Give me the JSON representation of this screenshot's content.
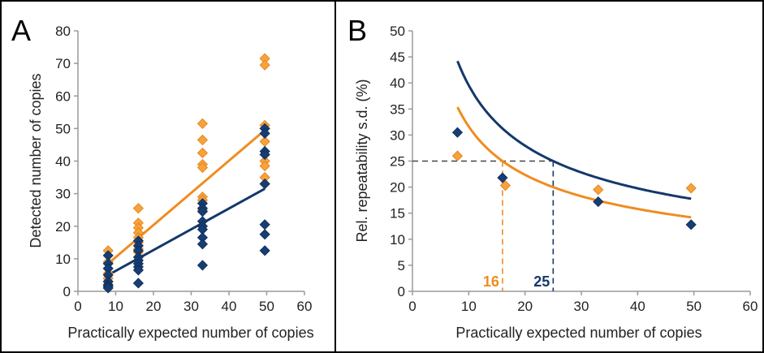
{
  "colors": {
    "orange": "#f08c1e",
    "orange_marker": "#f7a23b",
    "navy": "#14386b",
    "navy_marker": "#163e75",
    "axis": "#9a9a9a",
    "frame": "#000000"
  },
  "chart_data": [
    {
      "type": "scatter",
      "panel_label": "A",
      "title": "",
      "xlabel": "Practically expected number of copies",
      "ylabel": "Detected number of copies",
      "xlim": [
        0,
        60
      ],
      "ylim": [
        0,
        80
      ],
      "x_ticks": [
        "0",
        "10",
        "20",
        "30",
        "40",
        "50",
        "60"
      ],
      "y_ticks": [
        "0",
        "10",
        "20",
        "30",
        "40",
        "50",
        "60",
        "70",
        "80"
      ],
      "grid": false,
      "legend": "none",
      "series": [
        {
          "color": "orange",
          "points": [
            [
              8,
              12.5
            ],
            [
              8,
              9
            ],
            [
              8,
              7
            ],
            [
              8,
              5.5
            ],
            [
              8,
              4
            ],
            [
              8,
              3
            ],
            [
              8,
              2
            ],
            [
              16,
              25.5
            ],
            [
              16,
              21
            ],
            [
              16,
              19.5
            ],
            [
              16,
              18
            ],
            [
              16,
              16.5
            ],
            [
              16,
              15
            ],
            [
              16,
              13
            ],
            [
              16,
              12
            ],
            [
              33,
              51.5
            ],
            [
              33,
              46.5
            ],
            [
              33,
              42.5
            ],
            [
              33,
              39
            ],
            [
              33,
              38
            ],
            [
              33,
              29
            ],
            [
              33,
              28
            ],
            [
              33,
              25
            ],
            [
              49.5,
              71.5
            ],
            [
              49.5,
              69.5
            ],
            [
              49.5,
              51
            ],
            [
              49.5,
              50
            ],
            [
              49.5,
              46
            ],
            [
              49.5,
              42
            ],
            [
              49.5,
              40
            ],
            [
              49.5,
              38.5
            ],
            [
              49.5,
              35
            ],
            [
              49.5,
              33
            ]
          ],
          "fit": {
            "kind": "linear",
            "x": [
              8,
              49.5
            ],
            "y": [
              8.5,
              49.5
            ]
          }
        },
        {
          "color": "navy",
          "points": [
            [
              8,
              11
            ],
            [
              8,
              8.5
            ],
            [
              8,
              7
            ],
            [
              8,
              5
            ],
            [
              8,
              3
            ],
            [
              8,
              2
            ],
            [
              8,
              1.5
            ],
            [
              8,
              1
            ],
            [
              16,
              15.5
            ],
            [
              16,
              14
            ],
            [
              16,
              12.5
            ],
            [
              16,
              10.5
            ],
            [
              16,
              9.5
            ],
            [
              16,
              8.5
            ],
            [
              16,
              7.5
            ],
            [
              16,
              6.5
            ],
            [
              16,
              2.5
            ],
            [
              33,
              27
            ],
            [
              33,
              25.5
            ],
            [
              33,
              24.5
            ],
            [
              33,
              21.5
            ],
            [
              33,
              20
            ],
            [
              33,
              19
            ],
            [
              33,
              16.5
            ],
            [
              33,
              14.5
            ],
            [
              33,
              8
            ],
            [
              49.5,
              50
            ],
            [
              49.5,
              48.5
            ],
            [
              49.5,
              43
            ],
            [
              49.5,
              42
            ],
            [
              49.5,
              33
            ],
            [
              49.5,
              20.5
            ],
            [
              49.5,
              17.5
            ],
            [
              49.5,
              12.5
            ]
          ],
          "fit": {
            "kind": "linear",
            "x": [
              8,
              49.5
            ],
            "y": [
              5,
              31.5
            ]
          }
        }
      ]
    },
    {
      "type": "scatter",
      "panel_label": "B",
      "title": "",
      "xlabel": "Practically expected number of copies",
      "ylabel": "Rel. repeatability s.d. (%)",
      "xlim": [
        0,
        60
      ],
      "ylim": [
        0,
        50
      ],
      "x_ticks": [
        "0",
        "10",
        "20",
        "30",
        "40",
        "50",
        "60"
      ],
      "y_ticks": [
        "0",
        "5",
        "10",
        "15",
        "20",
        "25",
        "30",
        "35",
        "40",
        "45",
        "50"
      ],
      "grid": false,
      "legend": "none",
      "series": [
        {
          "color": "orange",
          "points": [
            [
              8,
              26
            ],
            [
              16.5,
              20.3
            ],
            [
              33,
              19.5
            ],
            [
              49.5,
              19.8
            ]
          ],
          "fit": {
            "kind": "power",
            "a": 100,
            "b": -0.5,
            "x_range": [
              8,
              49.5
            ]
          }
        },
        {
          "color": "navy",
          "points": [
            [
              8,
              30.5
            ],
            [
              16,
              21.8
            ],
            [
              33,
              17.2
            ],
            [
              49.5,
              12.8
            ]
          ],
          "fit": {
            "kind": "power",
            "a": 125,
            "b": -0.5,
            "x_range": [
              8,
              49.5
            ]
          }
        }
      ],
      "reference_lines": {
        "y": 25,
        "markers": [
          {
            "x": 16,
            "label": "16",
            "color": "orange"
          },
          {
            "x": 25,
            "label": "25",
            "color": "navy"
          }
        ]
      }
    }
  ]
}
